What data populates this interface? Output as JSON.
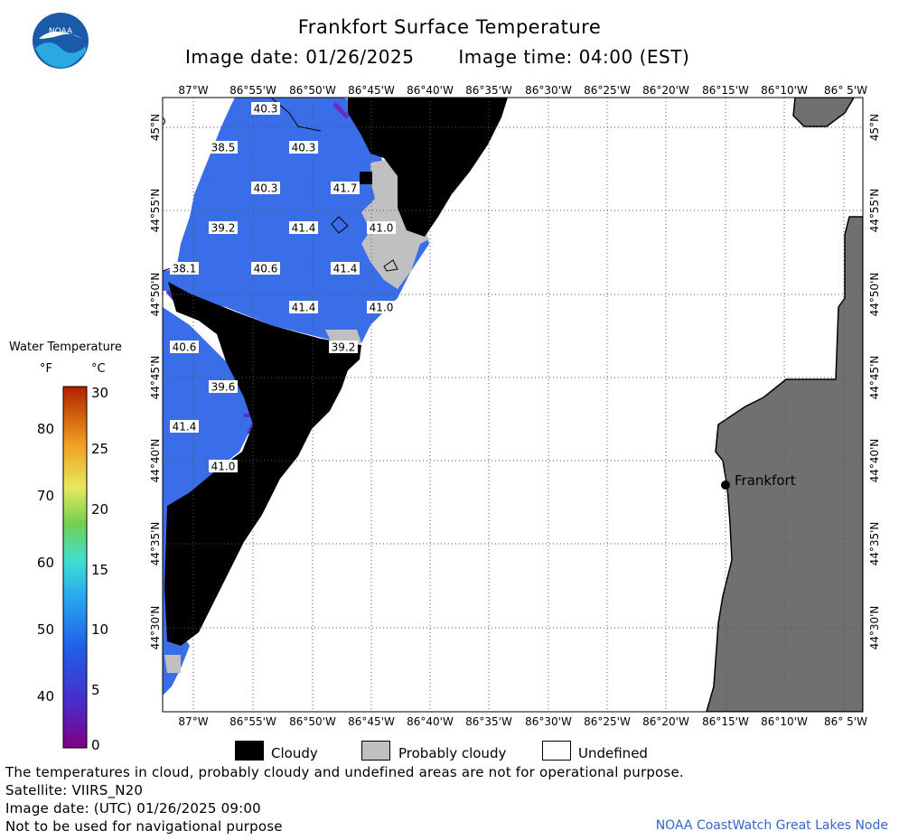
{
  "header": {
    "title": "Frankfort Surface Temperature",
    "image_date": "Image date: 01/26/2025",
    "image_time": "Image time: 04:00 (EST)",
    "logo_text": "NOAA"
  },
  "map": {
    "lon_labels": [
      "87°W",
      "86°55'W",
      "86°50'W",
      "86°45'W",
      "86°40'W",
      "86°35'W",
      "86°30'W",
      "86°25'W",
      "86°20'W",
      "86°15'W",
      "86°10'W",
      "86° 5'W"
    ],
    "lat_labels": [
      "45°N",
      "44°55'N",
      "44°50'N",
      "44°45'N",
      "44°40'N",
      "44°35'N",
      "44°30'N"
    ],
    "city": "Frankfort",
    "temperature_labels": [
      "40.3",
      "38.5",
      "40.3",
      "40.3",
      "41.7",
      "39.2",
      "41.4",
      "41.0",
      "38.1",
      "40.6",
      "41.4",
      "41.4",
      "41.0",
      "40.6",
      "39.2",
      "39.6",
      "41.4",
      "41.0"
    ]
  },
  "legend": {
    "title": "Water Temperature",
    "unit_f": "°F",
    "unit_c": "°C",
    "f_ticks": [
      "80",
      "70",
      "60",
      "50",
      "40"
    ],
    "c_ticks": [
      "30",
      "25",
      "20",
      "15",
      "10",
      "5",
      "0"
    ]
  },
  "key": {
    "cloudy": "Cloudy",
    "probably_cloudy": "Probably cloudy",
    "undefined": "Undefined"
  },
  "footer": {
    "note": "The temperatures in cloud, probably cloudy and undefined areas are not for operational purpose.",
    "satellite": "Satellite: VIIRS_N20",
    "utc_date": "Image date: (UTC) 01/26/2025  09:00",
    "nav_warning": "Not to be used for navigational purpose",
    "credit": "NOAA CoastWatch Great Lakes Node"
  },
  "colors": {
    "water_blue": "#3a6ee8",
    "water_purple": "#4438d0",
    "cloudy": "#000000",
    "probably_cloudy": "#c0c0c0",
    "land": "#707070"
  }
}
